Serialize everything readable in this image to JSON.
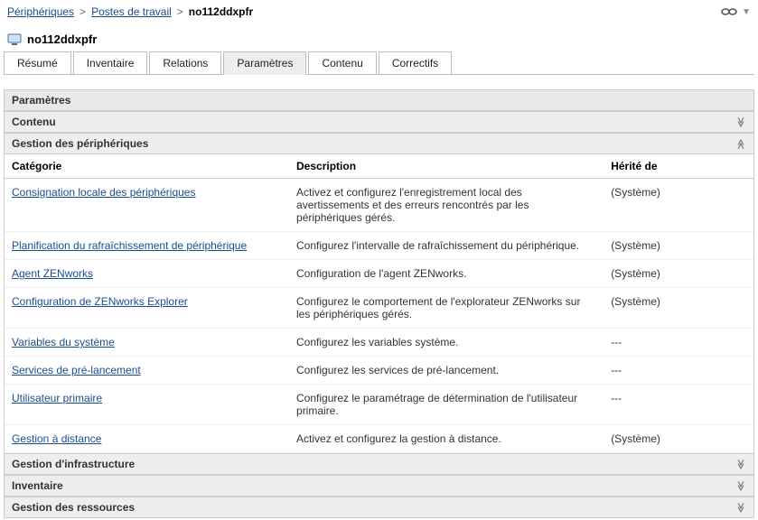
{
  "breadcrumb": {
    "items": [
      {
        "label": "Périphériques",
        "link": true
      },
      {
        "label": "Postes de travail",
        "link": true
      },
      {
        "label": "no112ddxpfr",
        "link": false
      }
    ],
    "separator": ">"
  },
  "page_title": "no112ddxpfr",
  "tabs": [
    {
      "label": "Résumé",
      "active": false
    },
    {
      "label": "Inventaire",
      "active": false
    },
    {
      "label": "Relations",
      "active": false
    },
    {
      "label": "Paramètres",
      "active": true
    },
    {
      "label": "Contenu",
      "active": false
    },
    {
      "label": "Correctifs",
      "active": false
    }
  ],
  "panel": {
    "title": "Paramètres",
    "sections": {
      "contenu": {
        "label": "Contenu",
        "expanded": false
      },
      "gestion_peripheriques": {
        "label": "Gestion des périphériques",
        "expanded": true
      },
      "gestion_infrastructure": {
        "label": "Gestion d'infrastructure",
        "expanded": false
      },
      "inventaire": {
        "label": "Inventaire",
        "expanded": false
      },
      "gestion_ressources": {
        "label": "Gestion des ressources",
        "expanded": false
      }
    },
    "columns": {
      "category": "Catégorie",
      "description": "Description",
      "inherited": "Hérité de"
    },
    "rows": [
      {
        "category": "Consignation locale des périphériques",
        "description": "Activez et configurez l'enregistrement local des avertissements et des erreurs rencontrés par les périphériques gérés.",
        "inherited": "(Système)"
      },
      {
        "category": "Planification du rafraîchissement de périphérique",
        "description": "Configurez l'intervalle de rafraîchissement du périphérique.",
        "inherited": "(Système)"
      },
      {
        "category": "Agent ZENworks",
        "description": "Configuration de l'agent ZENworks.",
        "inherited": "(Système)"
      },
      {
        "category": "Configuration de ZENworks Explorer",
        "description": "Configurez le comportement de l'explorateur ZENworks sur les périphériques gérés.",
        "inherited": "(Système)"
      },
      {
        "category": "Variables du système",
        "description": "Configurez les variables système.",
        "inherited": "---"
      },
      {
        "category": "Services de pré-lancement",
        "description": "Configurez les services de pré-lancement.",
        "inherited": "---"
      },
      {
        "category": "Utilisateur primaire",
        "description": "Configurez le paramétrage de détermination de l'utilisateur primaire.",
        "inherited": "---"
      },
      {
        "category": "Gestion à distance",
        "description": "Activez et configurez la gestion à distance.",
        "inherited": "(Système)"
      }
    ]
  },
  "colors": {
    "link": "#1a4d8f",
    "border": "#cccccc",
    "header_bg": "#e9e9e9",
    "section_bg": "#eeeeee",
    "text": "#333333"
  }
}
